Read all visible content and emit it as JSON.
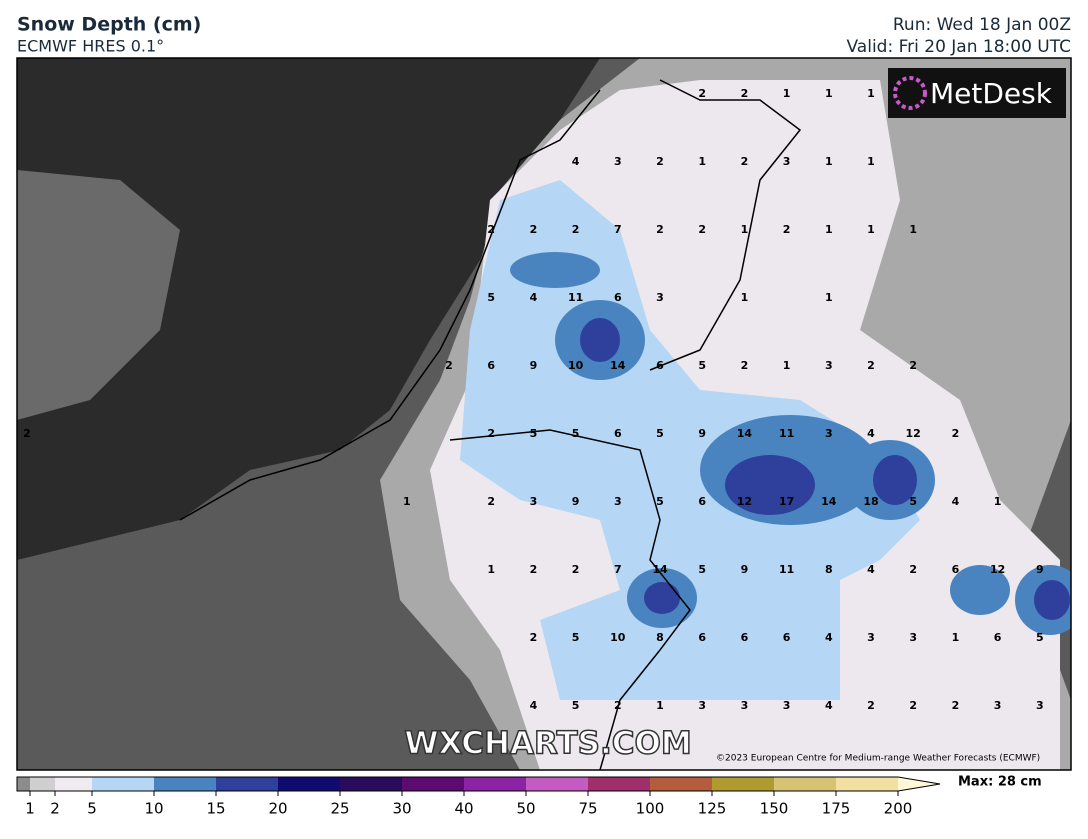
{
  "header": {
    "title": "Snow Depth (cm)",
    "subtitle": "ECMWF HRES 0.1°",
    "run": "Run: Wed 18 Jan 00Z",
    "valid": "Valid: Fri 20 Jan 18:00 UTC"
  },
  "logo": "MetDesk",
  "watermark": "WXCHARTS.COM",
  "copyright": "©2023 European Centre for Medium-range Weather Forecasts (ECMWF)",
  "max": "Max: 28 cm",
  "grid_labels": [
    [
      null,
      null,
      null,
      null,
      null,
      null,
      null,
      null,
      null,
      null,
      null,
      null,
      null,
      null,
      null,
      null,
      2,
      2,
      1,
      1,
      1,
      null,
      null,
      null,
      null
    ],
    [
      null,
      null,
      null,
      null,
      null,
      null,
      null,
      null,
      null,
      null,
      null,
      null,
      null,
      4,
      3,
      2,
      1,
      2,
      3,
      1,
      1,
      null,
      null,
      null,
      null
    ],
    [
      null,
      null,
      null,
      null,
      null,
      null,
      null,
      null,
      null,
      null,
      null,
      2,
      2,
      2,
      7,
      2,
      2,
      1,
      2,
      1,
      1,
      1,
      null,
      null,
      null
    ],
    [
      null,
      null,
      null,
      null,
      null,
      null,
      null,
      null,
      null,
      null,
      null,
      5,
      4,
      11,
      6,
      3,
      null,
      1,
      null,
      1,
      null,
      null,
      null,
      null,
      null
    ],
    [
      null,
      null,
      null,
      null,
      null,
      null,
      null,
      null,
      null,
      null,
      2,
      6,
      9,
      10,
      14,
      6,
      5,
      2,
      1,
      3,
      2,
      2,
      null,
      null,
      null
    ],
    [
      2,
      null,
      null,
      null,
      null,
      null,
      null,
      null,
      null,
      null,
      null,
      2,
      5,
      5,
      6,
      5,
      9,
      14,
      11,
      3,
      4,
      12,
      2,
      null,
      null
    ],
    [
      null,
      null,
      null,
      null,
      null,
      null,
      null,
      null,
      null,
      1,
      null,
      2,
      3,
      9,
      3,
      5,
      6,
      12,
      17,
      14,
      18,
      5,
      4,
      1,
      null
    ],
    [
      null,
      null,
      null,
      null,
      null,
      null,
      null,
      null,
      null,
      null,
      null,
      1,
      2,
      2,
      7,
      14,
      5,
      9,
      11,
      8,
      4,
      2,
      6,
      12,
      9
    ],
    [
      null,
      null,
      null,
      null,
      null,
      null,
      null,
      null,
      null,
      null,
      null,
      null,
      2,
      5,
      10,
      8,
      6,
      6,
      6,
      4,
      3,
      3,
      1,
      6,
      5
    ],
    [
      null,
      null,
      null,
      null,
      null,
      null,
      null,
      null,
      null,
      null,
      null,
      null,
      4,
      5,
      2,
      1,
      3,
      3,
      3,
      4,
      2,
      2,
      2,
      3,
      3
    ]
  ],
  "legend": {
    "ticks": [
      1,
      2,
      5,
      10,
      15,
      20,
      25,
      30,
      40,
      50,
      75,
      100,
      125,
      150,
      175,
      200
    ],
    "colors": [
      "#8c8c8c",
      "#cfcfcf",
      "#efebf1",
      "#b5d6f4",
      "#4a84c0",
      "#2f3f9c",
      "#100b70",
      "#2a0b5c",
      "#5c0b70",
      "#8a24a2",
      "#c45cc4",
      "#a0306c",
      "#b45c3c",
      "#b09a32",
      "#d8c274",
      "#f2e0a2",
      "#fff8d8"
    ]
  }
}
